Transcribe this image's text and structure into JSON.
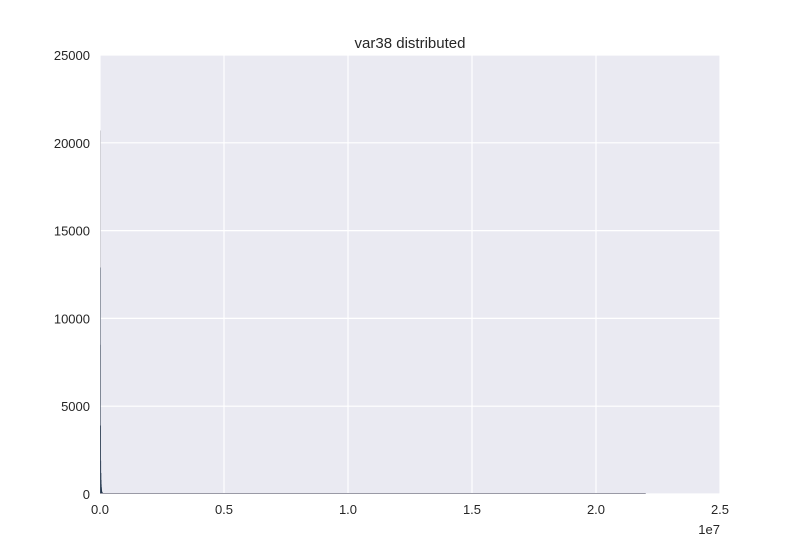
{
  "chart_data": {
    "type": "bar",
    "title": "var38 distributed",
    "xlabel": "",
    "ylabel": "",
    "x_offset_label": "1e7",
    "xlim": [
      0,
      2.5
    ],
    "ylim": [
      0,
      25000
    ],
    "x_ticks": [
      {
        "value": 0,
        "label": "0.0"
      },
      {
        "value": 0.5,
        "label": "0.5"
      },
      {
        "value": 1,
        "label": "1.0"
      },
      {
        "value": 1.5,
        "label": "1.5"
      },
      {
        "value": 2,
        "label": "2.0"
      },
      {
        "value": 2.5,
        "label": "2.5"
      }
    ],
    "y_ticks": [
      {
        "value": 0,
        "label": "0"
      },
      {
        "value": 5000,
        "label": "5000"
      },
      {
        "value": 10000,
        "label": "10000"
      },
      {
        "value": 15000,
        "label": "15000"
      },
      {
        "value": 20000,
        "label": "20000"
      },
      {
        "value": 25000,
        "label": "25000"
      }
    ],
    "grid": true,
    "legend": "none",
    "bins": [
      {
        "x0": 0.0,
        "x1": 0.0007,
        "count": 8500
      },
      {
        "x0": 0.0007,
        "x1": 0.0014,
        "count": 12900
      },
      {
        "x0": 0.0014,
        "x1": 0.0021,
        "count": 20700
      },
      {
        "x0": 0.0021,
        "x1": 0.0028,
        "count": 3900
      },
      {
        "x0": 0.0028,
        "x1": 0.0035,
        "count": 1900
      },
      {
        "x0": 0.0035,
        "x1": 0.0042,
        "count": 1200
      },
      {
        "x0": 0.0042,
        "x1": 0.0049,
        "count": 800
      },
      {
        "x0": 0.0049,
        "x1": 0.0056,
        "count": 550
      },
      {
        "x0": 0.0056,
        "x1": 0.0063,
        "count": 380
      },
      {
        "x0": 0.0063,
        "x1": 0.007,
        "count": 260
      },
      {
        "x0": 0.007,
        "x1": 0.008,
        "count": 180
      },
      {
        "x0": 0.008,
        "x1": 0.0095,
        "count": 120
      },
      {
        "x0": 0.0095,
        "x1": 0.012,
        "count": 80
      },
      {
        "x0": 0.012,
        "x1": 0.016,
        "count": 50
      },
      {
        "x0": 0.016,
        "x1": 0.022,
        "count": 30
      },
      {
        "x0": 0.022,
        "x1": 0.03,
        "count": 15
      },
      {
        "x0": 0.03,
        "x1": 0.04,
        "count": 8
      },
      {
        "x0": 0.04,
        "x1": 0.06,
        "count": 5
      },
      {
        "x0": 0.06,
        "x1": 0.1,
        "count": 3
      },
      {
        "x0": 0.1,
        "x1": 2.2,
        "count": 1
      }
    ],
    "colors": {
      "background": "#eaeaf2",
      "grid": "#ffffff",
      "bar": "#1d3148",
      "tall_bar": "#9a9aa6",
      "baseline": "#9a9aa6"
    }
  }
}
